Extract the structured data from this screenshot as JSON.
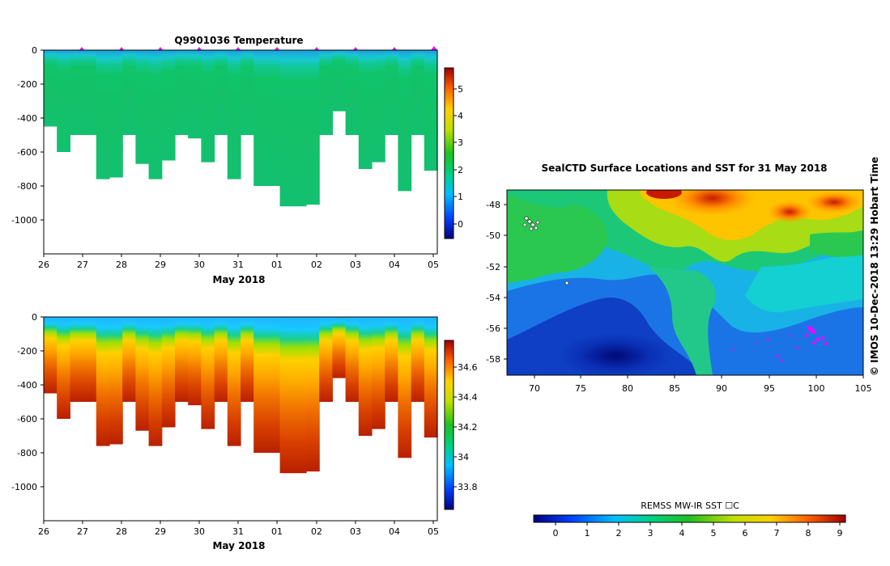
{
  "chart_data": [
    {
      "type": "heatmap",
      "title": "Q9901036  Temperature",
      "xlabel": "May 2018",
      "x_ticks": [
        "26",
        "27",
        "28",
        "29",
        "30",
        "31",
        "01",
        "02",
        "03",
        "04",
        "05"
      ],
      "y_ticks": [
        "0",
        "-200",
        "-400",
        "-600",
        "-800",
        "-1000"
      ],
      "ylim": [
        -1200,
        0
      ],
      "colorbar": {
        "range": [
          -0.5,
          5.8
        ],
        "ticks": [
          "0",
          "1",
          "2",
          "3",
          "4",
          "5"
        ]
      },
      "profile_depths": [
        -450,
        -600,
        -500,
        -500,
        -760,
        -750,
        -500,
        -670,
        -760,
        -650,
        -500,
        -520,
        -660,
        -500,
        -760,
        -500,
        -800,
        -800,
        -920,
        -920,
        -910,
        -500,
        -360,
        -500,
        -700,
        -660,
        -500,
        -830,
        -500,
        -710
      ],
      "surface_marker_days": [
        "27",
        "28",
        "29",
        "30",
        "31",
        "01",
        "02",
        "03",
        "04",
        "05"
      ]
    },
    {
      "type": "heatmap",
      "xlabel": "May 2018",
      "x_ticks": [
        "26",
        "27",
        "28",
        "29",
        "30",
        "31",
        "01",
        "02",
        "03",
        "04",
        "05"
      ],
      "y_ticks": [
        "0",
        "-200",
        "-400",
        "-600",
        "-800",
        "-1000"
      ],
      "ylim": [
        -1200,
        0
      ],
      "colorbar": {
        "range": [
          33.65,
          34.8
        ],
        "ticks": [
          "33.8",
          "34",
          "34.2",
          "34.4",
          "34.6"
        ]
      },
      "profile_depths": [
        -450,
        -600,
        -500,
        -500,
        -760,
        -750,
        -500,
        -670,
        -760,
        -650,
        -500,
        -520,
        -660,
        -500,
        -760,
        -500,
        -800,
        -800,
        -920,
        -920,
        -910,
        -500,
        -360,
        -500,
        -700,
        -660,
        -500,
        -830,
        -500,
        -710
      ]
    },
    {
      "type": "heatmap",
      "title": "SealCTD Surface Locations and SST for 31 May 2018",
      "x_ticks": [
        "70",
        "75",
        "80",
        "85",
        "90",
        "95",
        "100",
        "105"
      ],
      "y_ticks": [
        "-48",
        "-50",
        "-52",
        "-54",
        "-56",
        "-58"
      ],
      "xlim": [
        67,
        105
      ],
      "ylim": [
        -59,
        -47
      ],
      "colorbar": {
        "label": "REMSS MW-IR SST ☐C",
        "range": [
          -0.6,
          9.3
        ],
        "ticks": [
          "0",
          "1",
          "2",
          "3",
          "4",
          "5",
          "6",
          "7",
          "8",
          "9"
        ]
      }
    }
  ],
  "side_label": "©  IMOS 10-Dec-2018 13:29 Hobart Time"
}
